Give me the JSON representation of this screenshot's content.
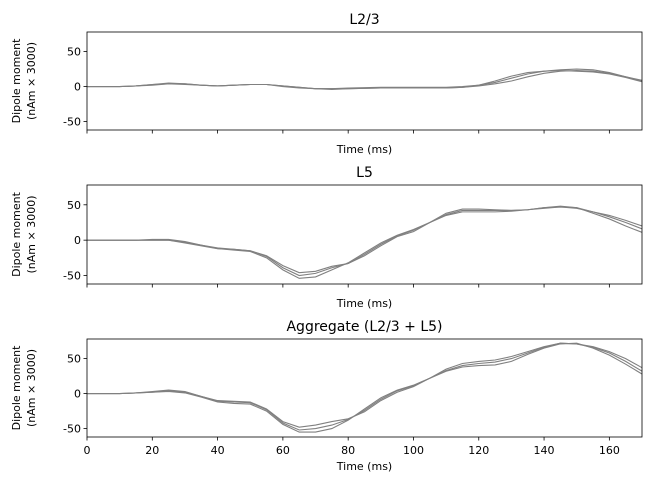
{
  "chart_data": [
    {
      "type": "line",
      "title": "L2/3",
      "xlabel": "Time (ms)",
      "ylabel": [
        "Dipole moment",
        "(nAm × 3000)"
      ],
      "xlim": [
        0,
        170
      ],
      "ylim": [
        -62,
        78
      ],
      "xticks": [
        0,
        20,
        40,
        60,
        80,
        100,
        120,
        140,
        160
      ],
      "yticks": [
        -50,
        0,
        50
      ],
      "show_xtick_labels": false,
      "line_color": "#808080",
      "series": [
        {
          "x": [
            0,
            10,
            15,
            20,
            25,
            30,
            35,
            40,
            45,
            50,
            55,
            60,
            65,
            70,
            75,
            80,
            90,
            100,
            110,
            115,
            120,
            125,
            130,
            135,
            140,
            145,
            150,
            155,
            160,
            165,
            170
          ],
          "values": [
            0,
            0,
            1,
            3,
            5,
            4,
            2,
            1,
            2,
            3,
            3,
            1,
            -1,
            -3,
            -3,
            -2,
            -1,
            -1,
            -1,
            0,
            2,
            6,
            12,
            18,
            22,
            24,
            25,
            24,
            20,
            14,
            8
          ]
        },
        {
          "x": [
            0,
            10,
            15,
            20,
            25,
            30,
            35,
            40,
            45,
            50,
            55,
            60,
            65,
            70,
            75,
            80,
            90,
            100,
            110,
            115,
            120,
            125,
            130,
            135,
            140,
            145,
            150,
            155,
            160,
            165,
            170
          ],
          "values": [
            0,
            0,
            1,
            3,
            4,
            3,
            2,
            1,
            2,
            3,
            3,
            0,
            -2,
            -3,
            -4,
            -3,
            -2,
            -2,
            -2,
            -1,
            1,
            4,
            8,
            14,
            19,
            22,
            23,
            22,
            19,
            14,
            9
          ]
        },
        {
          "x": [
            0,
            10,
            15,
            20,
            25,
            30,
            35,
            40,
            45,
            50,
            55,
            60,
            65,
            70,
            75,
            80,
            90,
            100,
            110,
            115,
            120,
            125,
            130,
            135,
            140,
            145,
            150,
            155,
            160,
            165,
            170
          ],
          "values": [
            0,
            0,
            1,
            2,
            4,
            4,
            2,
            1,
            2,
            3,
            3,
            1,
            -1,
            -3,
            -3,
            -3,
            -2,
            -2,
            -2,
            -1,
            2,
            8,
            15,
            20,
            22,
            23,
            22,
            21,
            18,
            13,
            7
          ]
        }
      ]
    },
    {
      "type": "line",
      "title": "L5",
      "xlabel": "Time (ms)",
      "ylabel": [
        "Dipole moment",
        "(nAm × 3000)"
      ],
      "xlim": [
        0,
        170
      ],
      "ylim": [
        -62,
        78
      ],
      "xticks": [
        0,
        20,
        40,
        60,
        80,
        100,
        120,
        140,
        160
      ],
      "yticks": [
        -50,
        0,
        50
      ],
      "show_xtick_labels": false,
      "line_color": "#808080",
      "series": [
        {
          "x": [
            0,
            10,
            15,
            20,
            25,
            30,
            35,
            40,
            45,
            50,
            55,
            60,
            65,
            70,
            75,
            80,
            85,
            90,
            95,
            100,
            105,
            110,
            115,
            120,
            125,
            130,
            135,
            140,
            145,
            150,
            155,
            160,
            165,
            170
          ],
          "values": [
            0,
            0,
            0,
            0,
            0,
            -3,
            -7,
            -11,
            -13,
            -15,
            -22,
            -36,
            -46,
            -44,
            -37,
            -33,
            -22,
            -8,
            5,
            12,
            25,
            38,
            44,
            44,
            43,
            42,
            43,
            45,
            47,
            45,
            40,
            35,
            28,
            20
          ]
        },
        {
          "x": [
            0,
            10,
            15,
            20,
            25,
            30,
            35,
            40,
            45,
            50,
            55,
            60,
            65,
            70,
            75,
            80,
            85,
            90,
            95,
            100,
            105,
            110,
            115,
            120,
            125,
            130,
            135,
            140,
            145,
            150,
            155,
            160,
            165,
            170
          ],
          "values": [
            0,
            0,
            0,
            1,
            1,
            -2,
            -7,
            -12,
            -14,
            -16,
            -25,
            -42,
            -54,
            -52,
            -42,
            -32,
            -18,
            -4,
            7,
            15,
            25,
            35,
            40,
            40,
            40,
            41,
            43,
            46,
            48,
            46,
            38,
            30,
            20,
            11
          ]
        },
        {
          "x": [
            0,
            10,
            15,
            20,
            25,
            30,
            35,
            40,
            45,
            50,
            55,
            60,
            65,
            70,
            75,
            80,
            85,
            90,
            95,
            100,
            105,
            110,
            115,
            120,
            125,
            130,
            135,
            140,
            145,
            150,
            155,
            160,
            165,
            170
          ],
          "values": [
            0,
            0,
            0,
            0,
            0,
            -4,
            -8,
            -12,
            -13,
            -15,
            -23,
            -39,
            -50,
            -47,
            -39,
            -33,
            -20,
            -6,
            6,
            14,
            25,
            36,
            42,
            42,
            42,
            42,
            43,
            46,
            47,
            46,
            40,
            33,
            25,
            16
          ]
        }
      ]
    },
    {
      "type": "line",
      "title": "Aggregate (L2/3 + L5)",
      "xlabel": "Time (ms)",
      "ylabel": [
        "Dipole moment",
        "(nAm × 3000)"
      ],
      "xlim": [
        0,
        170
      ],
      "ylim": [
        -62,
        78
      ],
      "xticks": [
        0,
        20,
        40,
        60,
        80,
        100,
        120,
        140,
        160
      ],
      "yticks": [
        -50,
        0,
        50
      ],
      "show_xtick_labels": true,
      "line_color": "#808080",
      "series": [
        {
          "x": [
            0,
            10,
            15,
            20,
            25,
            30,
            35,
            40,
            45,
            50,
            55,
            60,
            65,
            70,
            75,
            80,
            85,
            90,
            95,
            100,
            105,
            110,
            115,
            120,
            125,
            130,
            135,
            140,
            145,
            150,
            155,
            160,
            165,
            170
          ],
          "values": [
            0,
            0,
            1,
            3,
            5,
            3,
            -4,
            -10,
            -11,
            -12,
            -22,
            -40,
            -48,
            -45,
            -40,
            -36,
            -26,
            -10,
            2,
            10,
            22,
            35,
            43,
            46,
            48,
            53,
            60,
            67,
            72,
            71,
            67,
            60,
            50,
            37
          ]
        },
        {
          "x": [
            0,
            10,
            15,
            20,
            25,
            30,
            35,
            40,
            45,
            50,
            55,
            60,
            65,
            70,
            75,
            80,
            85,
            90,
            95,
            100,
            105,
            110,
            115,
            120,
            125,
            130,
            135,
            140,
            145,
            150,
            155,
            160,
            165,
            170
          ],
          "values": [
            0,
            0,
            1,
            2,
            3,
            1,
            -5,
            -12,
            -14,
            -15,
            -25,
            -44,
            -55,
            -55,
            -50,
            -38,
            -22,
            -6,
            5,
            12,
            22,
            32,
            38,
            40,
            41,
            46,
            56,
            65,
            71,
            72,
            65,
            55,
            42,
            28
          ]
        },
        {
          "x": [
            0,
            10,
            15,
            20,
            25,
            30,
            35,
            40,
            45,
            50,
            55,
            60,
            65,
            70,
            75,
            80,
            85,
            90,
            95,
            100,
            105,
            110,
            115,
            120,
            125,
            130,
            135,
            140,
            145,
            150,
            155,
            160,
            165,
            170
          ],
          "values": [
            0,
            0,
            1,
            2,
            4,
            2,
            -4,
            -11,
            -12,
            -13,
            -23,
            -42,
            -52,
            -50,
            -45,
            -37,
            -24,
            -8,
            4,
            11,
            22,
            33,
            40,
            43,
            45,
            50,
            58,
            66,
            72,
            71,
            66,
            58,
            46,
            32
          ]
        }
      ]
    }
  ]
}
